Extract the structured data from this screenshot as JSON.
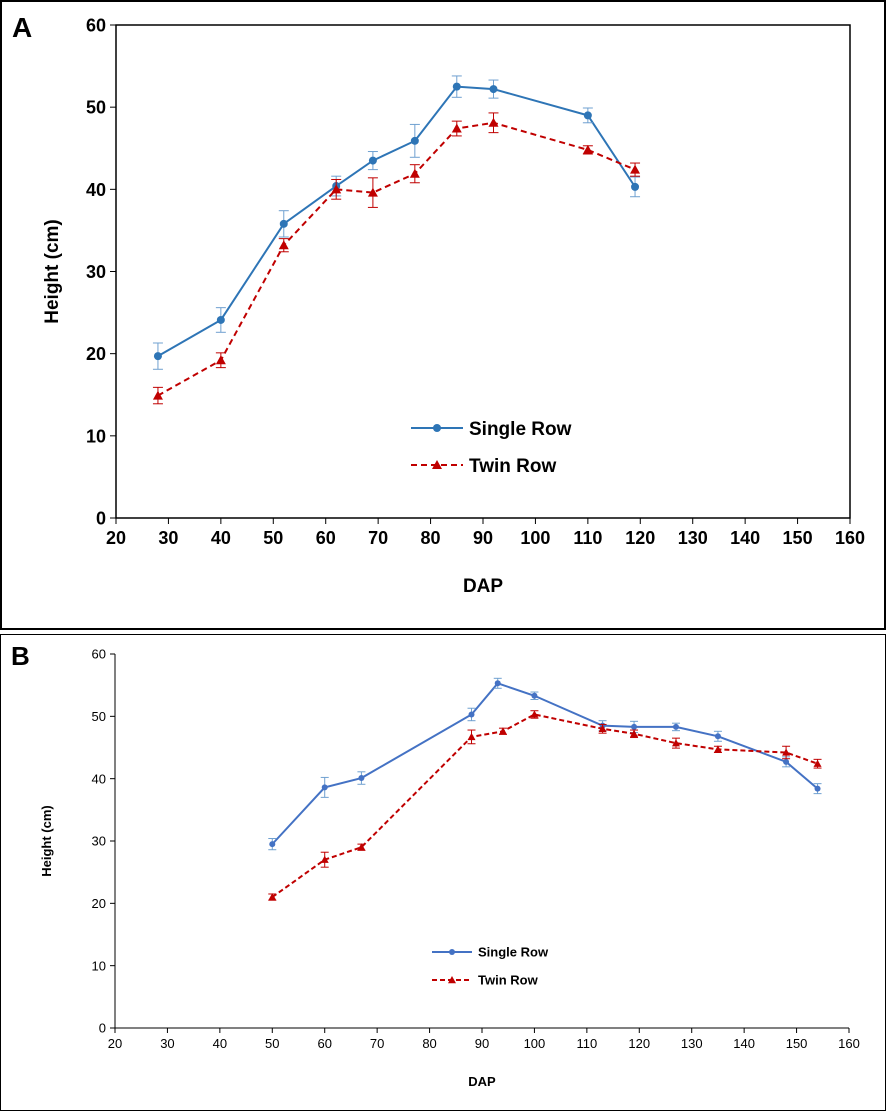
{
  "chart_data": [
    {
      "panel_label": "A",
      "type": "line",
      "xlabel": "DAP",
      "ylabel": "Height (cm)",
      "xlim": [
        20,
        160
      ],
      "ylim": [
        0,
        60
      ],
      "xticks": [
        20,
        30,
        40,
        50,
        60,
        70,
        80,
        90,
        100,
        110,
        120,
        130,
        140,
        150,
        160
      ],
      "yticks": [
        0,
        10,
        20,
        30,
        40,
        50,
        60
      ],
      "legend": "center-right",
      "grid": false,
      "series": [
        {
          "name": "Single Row",
          "color": "#2E75B6",
          "line_style": "solid",
          "marker": "circle",
          "x": [
            28,
            40,
            52,
            62,
            69,
            77,
            85,
            92,
            110,
            119
          ],
          "y": [
            19.7,
            24.1,
            35.8,
            40.4,
            43.5,
            45.9,
            52.5,
            52.2,
            49.0,
            40.3
          ],
          "err": [
            1.6,
            1.5,
            1.6,
            1.2,
            1.1,
            2.0,
            1.3,
            1.1,
            0.9,
            1.2
          ]
        },
        {
          "name": "Twin Row",
          "color": "#C00000",
          "line_style": "dashed",
          "marker": "triangle",
          "x": [
            28,
            40,
            52,
            62,
            69,
            77,
            85,
            92,
            110,
            119
          ],
          "y": [
            14.9,
            19.2,
            33.2,
            40.0,
            39.6,
            41.9,
            47.4,
            48.1,
            44.8,
            42.4
          ],
          "err": [
            1.0,
            0.9,
            0.8,
            1.2,
            1.8,
            1.1,
            0.9,
            1.2,
            0.5,
            0.8
          ]
        }
      ]
    },
    {
      "panel_label": "B",
      "type": "line",
      "xlabel": "DAP",
      "ylabel": "Height (cm)",
      "xlim": [
        20,
        160
      ],
      "ylim": [
        0,
        60
      ],
      "xticks": [
        20,
        30,
        40,
        50,
        60,
        70,
        80,
        90,
        100,
        110,
        120,
        130,
        140,
        150,
        160
      ],
      "yticks": [
        0,
        10,
        20,
        30,
        40,
        50,
        60
      ],
      "legend": "bottom-center",
      "grid": false,
      "series": [
        {
          "name": "Single Row",
          "color": "#4472C4",
          "line_style": "solid",
          "marker": "circle",
          "x": [
            50,
            60,
            67,
            88,
            93,
            100,
            113,
            119,
            127,
            135,
            148,
            154
          ],
          "y": [
            29.5,
            38.6,
            40.1,
            50.3,
            55.3,
            53.3,
            48.5,
            48.3,
            48.3,
            46.8,
            42.7,
            38.4
          ],
          "err": [
            0.9,
            1.6,
            1.0,
            1.0,
            0.8,
            0.6,
            0.8,
            0.9,
            0.6,
            0.8,
            0.8,
            0.8
          ]
        },
        {
          "name": "Twin Row",
          "color": "#C00000",
          "line_style": "dashed",
          "marker": "triangle",
          "x": [
            50,
            60,
            67,
            88,
            94,
            100,
            113,
            119,
            127,
            135,
            148,
            154
          ],
          "y": [
            21.0,
            27.0,
            29.0,
            46.7,
            47.6,
            50.3,
            48.0,
            47.2,
            45.7,
            44.7,
            44.2,
            42.4
          ],
          "err": [
            0.5,
            1.2,
            0.5,
            1.1,
            0.5,
            0.6,
            0.7,
            0.6,
            0.8,
            0.5,
            1.0,
            0.7
          ]
        }
      ]
    }
  ]
}
